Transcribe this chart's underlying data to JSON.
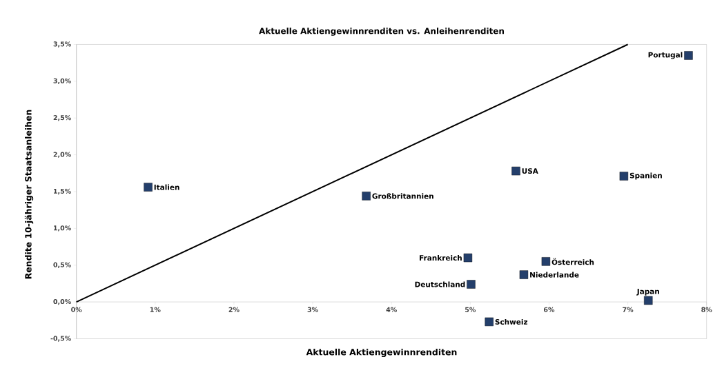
{
  "chart_data": {
    "type": "scatter",
    "title": "Aktuelle Aktiengewinnrenditen vs. Anleihenrenditen",
    "xlabel": "Aktuelle Aktiengewinnrenditen",
    "ylabel": "Rendite 10-jähriger Staatsanleihen",
    "xlim": [
      0,
      8
    ],
    "ylim": [
      -0.5,
      3.5
    ],
    "xticks": [
      {
        "value": 0,
        "label": "0%"
      },
      {
        "value": 1,
        "label": "1%"
      },
      {
        "value": 2,
        "label": "2%"
      },
      {
        "value": 3,
        "label": "3%"
      },
      {
        "value": 4,
        "label": "4%"
      },
      {
        "value": 5,
        "label": "5%"
      },
      {
        "value": 6,
        "label": "6%"
      },
      {
        "value": 7,
        "label": "7%"
      },
      {
        "value": 8,
        "label": "8%"
      }
    ],
    "yticks": [
      {
        "value": -0.5,
        "label": "-0,5%"
      },
      {
        "value": 0,
        "label": "0,0%"
      },
      {
        "value": 0.5,
        "label": "0,5%"
      },
      {
        "value": 1,
        "label": "1,0%"
      },
      {
        "value": 1.5,
        "label": "1,5%"
      },
      {
        "value": 2,
        "label": "2,0%"
      },
      {
        "value": 2.5,
        "label": "2,5%"
      },
      {
        "value": 3,
        "label": "3,0%"
      },
      {
        "value": 3.5,
        "label": "3,5%"
      }
    ],
    "grid": false,
    "series": [
      {
        "marker": "square",
        "color": "#243f6b",
        "x": [
          0.91,
          3.68,
          5.58,
          6.95,
          7.77,
          4.97,
          5.96,
          5.68,
          5.01,
          7.26,
          5.24
        ],
        "values": [
          1.56,
          1.44,
          1.78,
          1.71,
          3.35,
          0.6,
          0.55,
          0.37,
          0.24,
          0.02,
          -0.27
        ]
      },
      {
        "type": "line",
        "marker": "none",
        "color": "#000000",
        "x": [
          0,
          7
        ],
        "values": [
          0,
          3.5
        ]
      }
    ],
    "annotations": [
      {
        "text": "Italien",
        "x": 0.91,
        "y": 1.56
      },
      {
        "text": "Großbritannien",
        "x": 3.68,
        "y": 1.44
      },
      {
        "text": "USA",
        "x": 5.58,
        "y": 1.78
      },
      {
        "text": "Spanien",
        "x": 6.95,
        "y": 1.71
      },
      {
        "text": "Portugal",
        "x": 7.77,
        "y": 3.35
      },
      {
        "text": "Frankreich",
        "x": 4.97,
        "y": 0.6
      },
      {
        "text": "Österreich",
        "x": 5.96,
        "y": 0.55
      },
      {
        "text": "Niederlande",
        "x": 5.68,
        "y": 0.37
      },
      {
        "text": "Deutschland",
        "x": 5.01,
        "y": 0.24
      },
      {
        "text": "Japan",
        "x": 7.26,
        "y": 0.02
      },
      {
        "text": "Schweiz",
        "x": 5.24,
        "y": -0.27
      }
    ]
  }
}
